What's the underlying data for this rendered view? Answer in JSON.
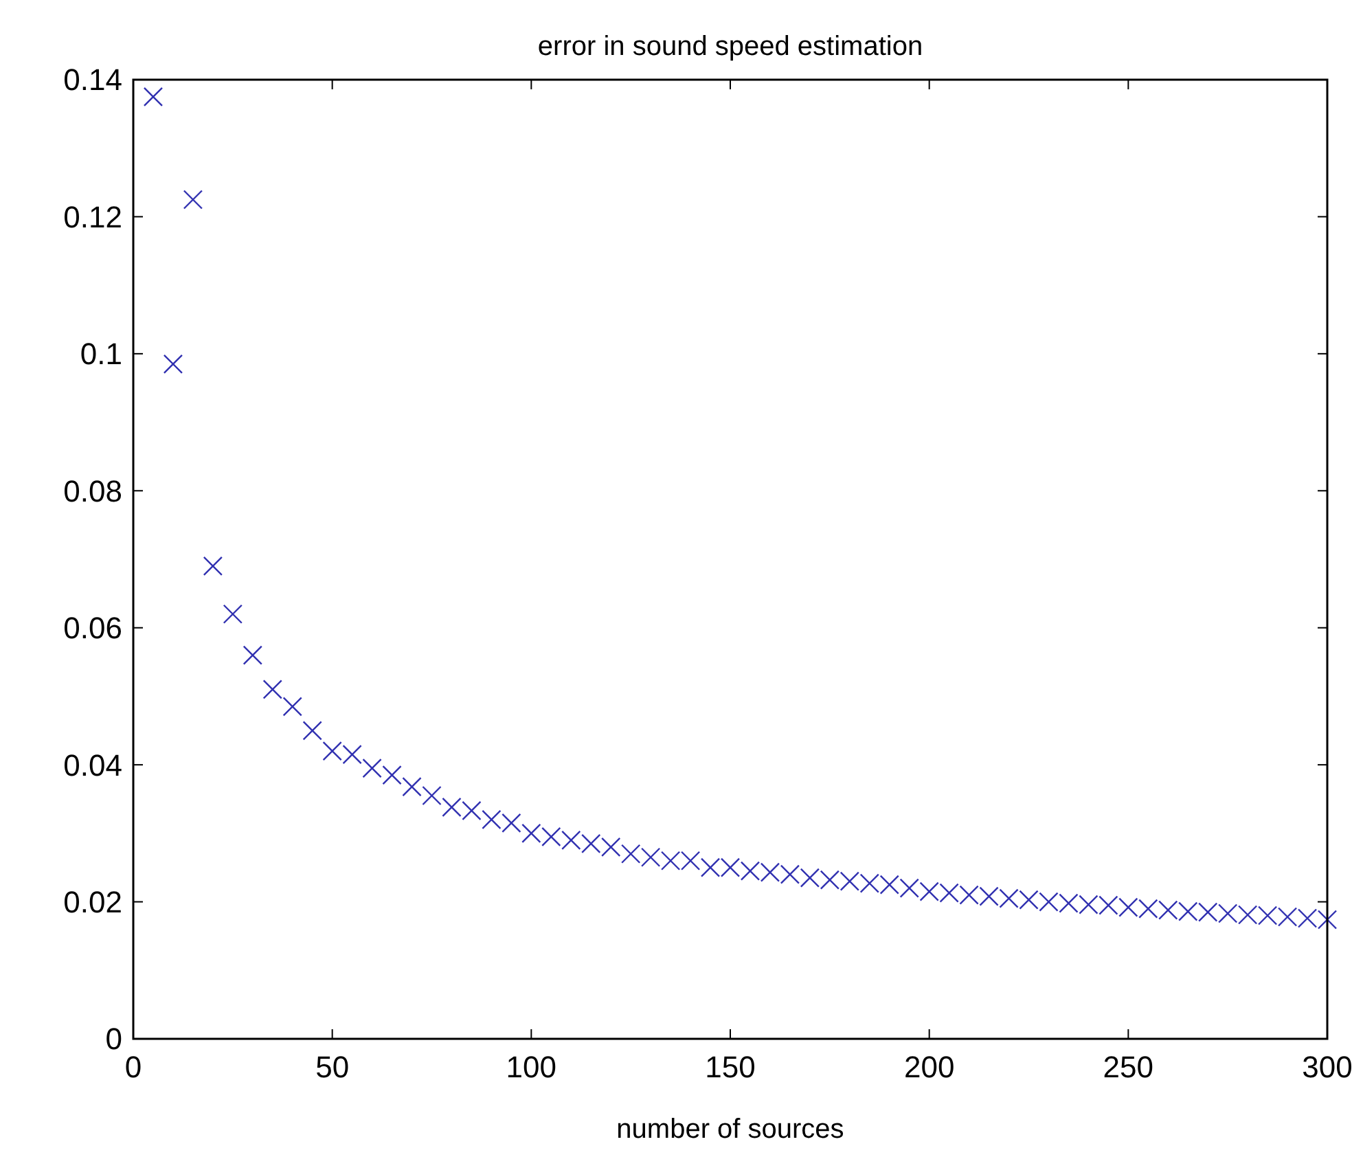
{
  "chart_data": {
    "type": "scatter",
    "title": "error in sound speed estimation",
    "xlabel": "number of sources",
    "x": [
      5,
      10,
      15,
      20,
      25,
      30,
      35,
      40,
      45,
      50,
      55,
      60,
      65,
      70,
      75,
      80,
      85,
      90,
      95,
      100,
      105,
      110,
      115,
      120,
      125,
      130,
      135,
      140,
      145,
      150,
      155,
      160,
      165,
      170,
      175,
      180,
      185,
      190,
      195,
      200,
      205,
      210,
      215,
      220,
      225,
      230,
      235,
      240,
      245,
      250,
      255,
      260,
      265,
      270,
      275,
      280,
      285,
      290,
      295,
      300
    ],
    "series": [
      {
        "color": "#3030b0",
        "values": [
          0.1375,
          0.0985,
          0.1225,
          0.069,
          0.062,
          0.056,
          0.051,
          0.0485,
          0.045,
          0.042,
          0.0415,
          0.0395,
          0.0385,
          0.0368,
          0.0355,
          0.0338,
          0.0333,
          0.032,
          0.0315,
          0.03,
          0.0295,
          0.029,
          0.0285,
          0.028,
          0.027,
          0.0265,
          0.026,
          0.026,
          0.025,
          0.025,
          0.0245,
          0.0243,
          0.024,
          0.0235,
          0.0232,
          0.023,
          0.0227,
          0.0225,
          0.022,
          0.0215,
          0.0213,
          0.021,
          0.0208,
          0.0205,
          0.0203,
          0.02,
          0.0198,
          0.0196,
          0.0195,
          0.0192,
          0.019,
          0.0188,
          0.0186,
          0.0185,
          0.0183,
          0.0181,
          0.018,
          0.0178,
          0.0176,
          0.0174
        ]
      }
    ],
    "marker": "cross",
    "grid": false,
    "xlim": [
      0,
      300
    ],
    "xticks": [
      0,
      50,
      100,
      150,
      200,
      250,
      300
    ],
    "ylim": [
      0,
      0.14
    ],
    "yticks": [
      0,
      0.02,
      0.04,
      0.06,
      0.08,
      0.1,
      0.12,
      0.14
    ]
  }
}
